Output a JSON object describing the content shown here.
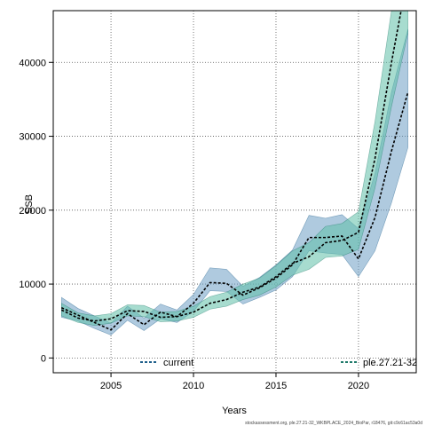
{
  "chart_data": {
    "type": "line",
    "xlabel": "Years",
    "ylabel": "SSB",
    "xlim": [
      2001.5,
      2023.5
    ],
    "ylim": [
      -2000,
      47000
    ],
    "x_ticks": [
      2005,
      2010,
      2015,
      2020
    ],
    "y_ticks": [
      0,
      10000,
      20000,
      30000,
      40000
    ],
    "grid": "dotted",
    "legend_placement": "bottom",
    "footer": "stockassessment.org, ple.27.21-32_WKBPLACE_2024_BioPar, r18476, git:c9c61ac53a0d",
    "x": [
      2002,
      2003,
      2004,
      2005,
      2006,
      2007,
      2008,
      2009,
      2010,
      2011,
      2012,
      2013,
      2014,
      2015,
      2016,
      2017,
      2018,
      2019,
      2020,
      2021,
      2022,
      2023
    ],
    "series": [
      {
        "name": "current",
        "color": "#1f5f8b",
        "fill": "#6e9ec4",
        "values": [
          6800,
          5800,
          4800,
          3800,
          6000,
          4500,
          6200,
          5600,
          7400,
          10200,
          10100,
          8500,
          9500,
          10800,
          12600,
          16300,
          16300,
          16500,
          13400,
          19000,
          28000,
          36000
        ],
        "lower": [
          5500,
          5000,
          4000,
          3100,
          5100,
          3700,
          5300,
          4800,
          6300,
          9100,
          9000,
          7300,
          8200,
          9200,
          11000,
          14500,
          14200,
          14000,
          11000,
          14500,
          21000,
          28500
        ],
        "upper": [
          8200,
          6700,
          5700,
          4700,
          7000,
          5400,
          7300,
          6500,
          8600,
          12200,
          12000,
          9700,
          10900,
          12600,
          14600,
          19300,
          18900,
          19400,
          17500,
          25000,
          36000,
          44500
        ]
      },
      {
        "name": "ple.27.21-32",
        "color": "#1f7a6a",
        "fill": "#5fbfa8",
        "values": [
          6500,
          5400,
          5000,
          5300,
          6400,
          6300,
          5500,
          5600,
          6200,
          7400,
          7900,
          8900,
          9600,
          11000,
          12800,
          13700,
          15600,
          15900,
          17000,
          27000,
          40000,
          52000
        ],
        "lower": [
          5700,
          4800,
          4400,
          4700,
          5700,
          5600,
          4900,
          5000,
          5500,
          6600,
          7000,
          7900,
          8500,
          9600,
          11200,
          12000,
          13600,
          13800,
          14700,
          23000,
          34000,
          44000
        ],
        "upper": [
          7400,
          6100,
          5700,
          6000,
          7200,
          7100,
          6200,
          6300,
          7000,
          8300,
          8900,
          10000,
          10800,
          12500,
          14500,
          15600,
          17800,
          18200,
          19800,
          32000,
          47000,
          60000
        ]
      }
    ]
  }
}
